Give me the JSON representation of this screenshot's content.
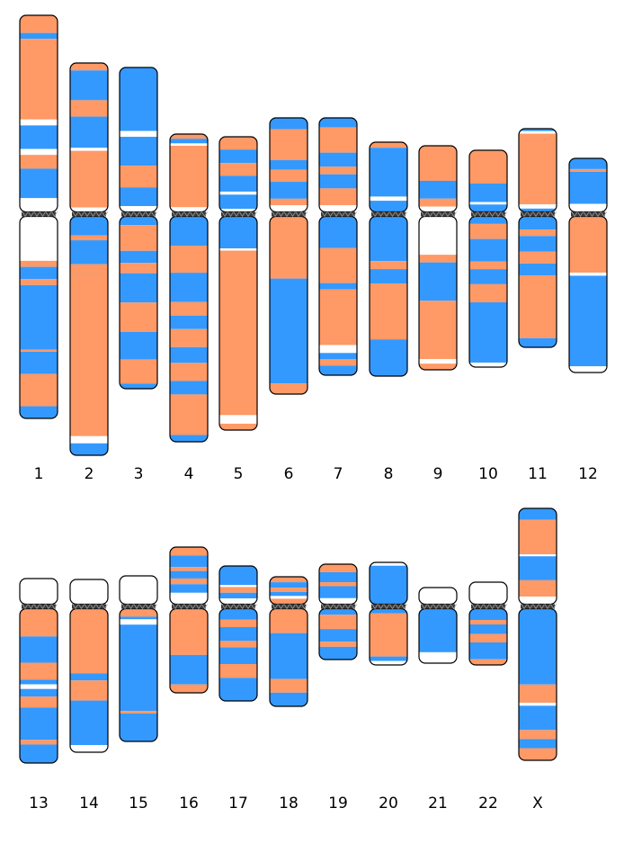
{
  "colors": {
    "a": "#ff9966",
    "b": "#3399ff",
    "empty": "#ffffff",
    "centromere": "#3a3a3a",
    "outline": "#000000"
  },
  "chromosomes": [
    {
      "label": "1",
      "p": [
        [
          "a",
          0,
          0.09
        ],
        [
          "b",
          0.09,
          0.12
        ],
        [
          "a",
          0.12,
          0.53
        ],
        [
          "empty",
          0.53,
          0.56
        ],
        [
          "b",
          0.56,
          0.68
        ],
        [
          "empty",
          0.68,
          0.71
        ],
        [
          "a",
          0.71,
          0.78
        ],
        [
          "b",
          0.78,
          0.93
        ],
        [
          "empty",
          0.93,
          1
        ]
      ],
      "q": [
        [
          "empty",
          0,
          0.22
        ],
        [
          "a",
          0.22,
          0.25
        ],
        [
          "b",
          0.25,
          0.31
        ],
        [
          "a",
          0.31,
          0.34
        ],
        [
          "b",
          0.34,
          0.66
        ],
        [
          "a",
          0.66,
          0.67
        ],
        [
          "b",
          0.67,
          0.78
        ],
        [
          "a",
          0.78,
          0.94
        ],
        [
          "b",
          0.94,
          1
        ]
      ]
    },
    {
      "label": "2",
      "p": [
        [
          "a",
          0,
          0.05
        ],
        [
          "b",
          0.05,
          0.25
        ],
        [
          "a",
          0.25,
          0.36
        ],
        [
          "b",
          0.36,
          0.57
        ],
        [
          "empty",
          0.57,
          0.59
        ],
        [
          "a",
          0.59,
          0.97
        ],
        [
          "empty",
          0.97,
          1
        ]
      ],
      "q": [
        [
          "b",
          0,
          0.08
        ],
        [
          "a",
          0.08,
          0.1
        ],
        [
          "b",
          0.1,
          0.2
        ],
        [
          "a",
          0.2,
          0.24
        ],
        [
          "b",
          0.24,
          0.24
        ],
        [
          "a",
          0.24,
          0.92
        ],
        [
          "empty",
          0.92,
          0.95
        ],
        [
          "b",
          0.95,
          1
        ]
      ]
    },
    {
      "label": "3",
      "p": [
        [
          "b",
          0,
          0.44
        ],
        [
          "empty",
          0.44,
          0.48
        ],
        [
          "b",
          0.48,
          0.68
        ],
        [
          "a",
          0.68,
          0.83
        ],
        [
          "b",
          0.83,
          0.96
        ],
        [
          "empty",
          0.96,
          1
        ]
      ],
      "q": [
        [
          "b",
          0,
          0.05
        ],
        [
          "a",
          0.05,
          0.2
        ],
        [
          "b",
          0.2,
          0.27
        ],
        [
          "a",
          0.27,
          0.33
        ],
        [
          "b",
          0.33,
          0.5
        ],
        [
          "a",
          0.5,
          0.67
        ],
        [
          "b",
          0.67,
          0.83
        ],
        [
          "a",
          0.83,
          0.97
        ],
        [
          "b",
          0.97,
          1
        ]
      ]
    },
    {
      "label": "4",
      "p": [
        [
          "a",
          0,
          0.06
        ],
        [
          "b",
          0.06,
          0.12
        ],
        [
          "empty",
          0.12,
          0.15
        ],
        [
          "a",
          0.15,
          0.94
        ],
        [
          "empty",
          0.94,
          1
        ]
      ],
      "q": [
        [
          "b",
          0,
          0.13
        ],
        [
          "a",
          0.13,
          0.25
        ],
        [
          "b",
          0.25,
          0.38
        ],
        [
          "a",
          0.38,
          0.44
        ],
        [
          "b",
          0.44,
          0.5
        ],
        [
          "a",
          0.5,
          0.58
        ],
        [
          "b",
          0.58,
          0.65
        ],
        [
          "a",
          0.65,
          0.73
        ],
        [
          "b",
          0.73,
          0.79
        ],
        [
          "a",
          0.79,
          0.97
        ],
        [
          "b",
          0.97,
          1
        ]
      ]
    },
    {
      "label": "5",
      "p": [
        [
          "a",
          0,
          0.17
        ],
        [
          "b",
          0.17,
          0.35
        ],
        [
          "a",
          0.35,
          0.52
        ],
        [
          "b",
          0.52,
          0.73
        ],
        [
          "empty",
          0.73,
          0.77
        ],
        [
          "b",
          0.77,
          0.96
        ],
        [
          "empty",
          0.96,
          1
        ]
      ],
      "q": [
        [
          "b",
          0,
          0.15
        ],
        [
          "empty",
          0.15,
          0.16
        ],
        [
          "a",
          0.16,
          0.93
        ],
        [
          "empty",
          0.93,
          0.97
        ],
        [
          "a",
          0.97,
          1
        ]
      ]
    },
    {
      "label": "6",
      "p": [
        [
          "b",
          0,
          0.12
        ],
        [
          "a",
          0.12,
          0.45
        ],
        [
          "b",
          0.45,
          0.55
        ],
        [
          "a",
          0.55,
          0.68
        ],
        [
          "b",
          0.68,
          0.86
        ],
        [
          "a",
          0.86,
          0.93
        ],
        [
          "empty",
          0.93,
          1
        ]
      ],
      "q": [
        [
          "a",
          0,
          0.35
        ],
        [
          "b",
          0.35,
          0.94
        ],
        [
          "a",
          0.94,
          1
        ]
      ]
    },
    {
      "label": "7",
      "p": [
        [
          "b",
          0,
          0.1
        ],
        [
          "a",
          0.1,
          0.37
        ],
        [
          "b",
          0.37,
          0.52
        ],
        [
          "a",
          0.52,
          0.6
        ],
        [
          "b",
          0.6,
          0.75
        ],
        [
          "a",
          0.75,
          0.93
        ],
        [
          "empty",
          0.93,
          1
        ]
      ],
      "q": [
        [
          "b",
          0,
          0.2
        ],
        [
          "a",
          0.2,
          0.42
        ],
        [
          "b",
          0.42,
          0.46
        ],
        [
          "a",
          0.46,
          0.81
        ],
        [
          "empty",
          0.81,
          0.86
        ],
        [
          "b",
          0.86,
          0.9
        ],
        [
          "a",
          0.9,
          0.94
        ],
        [
          "b",
          0.94,
          1
        ]
      ]
    },
    {
      "label": "8",
      "p": [
        [
          "a",
          0,
          0.08
        ],
        [
          "b",
          0.08,
          0.78
        ],
        [
          "empty",
          0.78,
          0.84
        ],
        [
          "b",
          0.84,
          1
        ]
      ],
      "q": [
        [
          "b",
          0,
          0.28
        ],
        [
          "a",
          0.28,
          0.33
        ],
        [
          "b",
          0.33,
          0.42
        ],
        [
          "a",
          0.42,
          0.77
        ],
        [
          "b",
          0.77,
          1
        ]
      ]
    },
    {
      "label": "9",
      "p": [
        [
          "a",
          0,
          0.53
        ],
        [
          "b",
          0.53,
          0.8
        ],
        [
          "a",
          0.8,
          0.92
        ],
        [
          "empty",
          0.92,
          1
        ]
      ],
      "q": [
        [
          "empty",
          0,
          0.25
        ],
        [
          "a",
          0.25,
          0.3
        ],
        [
          "b",
          0.3,
          0.55
        ],
        [
          "a",
          0.55,
          0.93
        ],
        [
          "empty",
          0.93,
          0.96
        ],
        [
          "a",
          0.96,
          1
        ]
      ]
    },
    {
      "label": "10",
      "p": [
        [
          "a",
          0,
          0.54
        ],
        [
          "b",
          0.54,
          0.84
        ],
        [
          "empty",
          0.84,
          0.88
        ],
        [
          "b",
          0.88,
          1
        ]
      ],
      "q": [
        [
          "b",
          0,
          0.05
        ],
        [
          "a",
          0.05,
          0.15
        ],
        [
          "b",
          0.15,
          0.3
        ],
        [
          "a",
          0.3,
          0.35
        ],
        [
          "b",
          0.35,
          0.45
        ],
        [
          "a",
          0.45,
          0.57
        ],
        [
          "b",
          0.57,
          0.97
        ],
        [
          "empty",
          0.97,
          1
        ]
      ]
    },
    {
      "label": "11",
      "p": [
        [
          "b",
          0,
          0.03
        ],
        [
          "empty",
          0.03,
          0.06
        ],
        [
          "a",
          0.06,
          0.91
        ],
        [
          "empty",
          0.91,
          0.96
        ],
        [
          "b",
          0.96,
          1
        ]
      ],
      "q": [
        [
          "b",
          0,
          0.1
        ],
        [
          "a",
          0.1,
          0.15
        ],
        [
          "b",
          0.15,
          0.27
        ],
        [
          "a",
          0.27,
          0.36
        ],
        [
          "b",
          0.36,
          0.45
        ],
        [
          "a",
          0.45,
          0.93
        ],
        [
          "b",
          0.93,
          1
        ]
      ]
    },
    {
      "label": "12",
      "p": [
        [
          "b",
          0,
          0.2
        ],
        [
          "a",
          0.2,
          0.25
        ],
        [
          "b",
          0.25,
          0.85
        ],
        [
          "empty",
          0.85,
          1
        ]
      ],
      "q": [
        [
          "a",
          0,
          0.36
        ],
        [
          "empty",
          0.36,
          0.38
        ],
        [
          "b",
          0.38,
          0.96
        ],
        [
          "empty",
          0.96,
          1
        ]
      ]
    },
    {
      "label": "13",
      "p": [
        [
          "empty",
          0,
          1
        ]
      ],
      "q": [
        [
          "a",
          0,
          0.18
        ],
        [
          "b",
          0.18,
          0.35
        ],
        [
          "a",
          0.35,
          0.46
        ],
        [
          "b",
          0.46,
          0.49
        ],
        [
          "empty",
          0.49,
          0.52
        ],
        [
          "b",
          0.52,
          0.57
        ],
        [
          "a",
          0.57,
          0.64
        ],
        [
          "b",
          0.64,
          0.85
        ],
        [
          "a",
          0.85,
          0.88
        ],
        [
          "b",
          0.88,
          1
        ]
      ]
    },
    {
      "label": "14",
      "p": [
        [
          "empty",
          0,
          1
        ]
      ],
      "q": [
        [
          "a",
          0,
          0.45
        ],
        [
          "b",
          0.45,
          0.5
        ],
        [
          "a",
          0.5,
          0.64
        ],
        [
          "b",
          0.64,
          0.95
        ],
        [
          "empty",
          0.95,
          1
        ]
      ]
    },
    {
      "label": "15",
      "p": [
        [
          "empty",
          0,
          1
        ]
      ],
      "q": [
        [
          "a",
          0,
          0.06
        ],
        [
          "b",
          0.06,
          0.08
        ],
        [
          "empty",
          0.08,
          0.12
        ],
        [
          "b",
          0.12,
          0.77
        ],
        [
          "a",
          0.77,
          0.79
        ],
        [
          "b",
          0.79,
          1
        ]
      ]
    },
    {
      "label": "16",
      "p": [
        [
          "a",
          0,
          0.15
        ],
        [
          "b",
          0.15,
          0.35
        ],
        [
          "a",
          0.35,
          0.42
        ],
        [
          "b",
          0.42,
          0.55
        ],
        [
          "a",
          0.55,
          0.65
        ],
        [
          "b",
          0.65,
          0.8
        ],
        [
          "empty",
          0.8,
          1
        ]
      ],
      "q": [
        [
          "empty",
          0,
          0.12
        ],
        [
          "a",
          0,
          0.55
        ],
        [
          "b",
          0.55,
          0.9
        ],
        [
          "a",
          0.9,
          1
        ]
      ]
    },
    {
      "label": "17",
      "p": [
        [
          "b",
          0,
          0.5
        ],
        [
          "empty",
          0.5,
          0.55
        ],
        [
          "a",
          0.55,
          0.7
        ],
        [
          "b",
          0.7,
          0.85
        ],
        [
          "empty",
          0.85,
          1
        ]
      ],
      "q": [
        [
          "b",
          0,
          0.12
        ],
        [
          "a",
          0.12,
          0.2
        ],
        [
          "b",
          0.2,
          0.35
        ],
        [
          "a",
          0.35,
          0.42
        ],
        [
          "b",
          0.42,
          0.6
        ],
        [
          "a",
          0.6,
          0.75
        ],
        [
          "b",
          0.75,
          1
        ]
      ]
    },
    {
      "label": "18",
      "p": [
        [
          "a",
          0,
          0.2
        ],
        [
          "b",
          0.2,
          0.4
        ],
        [
          "a",
          0.4,
          0.55
        ],
        [
          "b",
          0.55,
          0.7
        ],
        [
          "empty",
          0.7,
          0.8
        ],
        [
          "a",
          0.8,
          1
        ]
      ],
      "q": [
        [
          "a",
          0,
          0.25
        ],
        [
          "b",
          0.25,
          0.72
        ],
        [
          "a",
          0.72,
          0.86
        ],
        [
          "b",
          0.86,
          1
        ]
      ]
    },
    {
      "label": "19",
      "p": [
        [
          "a",
          0,
          0.2
        ],
        [
          "b",
          0.2,
          0.45
        ],
        [
          "a",
          0.45,
          0.55
        ],
        [
          "b",
          0.55,
          0.85
        ],
        [
          "empty",
          0.85,
          1
        ]
      ],
      "q": [
        [
          "b",
          0,
          0.12
        ],
        [
          "a",
          0.12,
          0.4
        ],
        [
          "b",
          0.4,
          0.65
        ],
        [
          "a",
          0.65,
          0.75
        ],
        [
          "b",
          0.75,
          1
        ]
      ]
    },
    {
      "label": "20",
      "p": [
        [
          "empty",
          0,
          0.08
        ],
        [
          "b",
          0.08,
          1
        ]
      ],
      "q": [
        [
          "b",
          0,
          0.08
        ],
        [
          "a",
          0.08,
          0.85
        ],
        [
          "b",
          0.85,
          0.93
        ],
        [
          "empty",
          0.93,
          1
        ]
      ]
    },
    {
      "label": "21",
      "p": [
        [
          "empty",
          0,
          1
        ]
      ],
      "q": [
        [
          "b",
          0,
          0.8
        ],
        [
          "empty",
          0.8,
          1
        ]
      ]
    },
    {
      "label": "22",
      "p": [
        [
          "empty",
          0,
          1
        ]
      ],
      "q": [
        [
          "b",
          0,
          0.2
        ],
        [
          "a",
          0.2,
          0.28
        ],
        [
          "b",
          0.28,
          0.45
        ],
        [
          "a",
          0.45,
          0.6
        ],
        [
          "b",
          0.6,
          0.9
        ],
        [
          "a",
          0.9,
          1
        ]
      ]
    },
    {
      "label": "X",
      "p": [
        [
          "b",
          0,
          0.12
        ],
        [
          "a",
          0.12,
          0.48
        ],
        [
          "empty",
          0.48,
          0.5
        ],
        [
          "b",
          0.5,
          0.75
        ],
        [
          "a",
          0.75,
          0.92
        ],
        [
          "empty",
          0.92,
          1
        ]
      ],
      "q": [
        [
          "b",
          0,
          0.5
        ],
        [
          "a",
          0.5,
          0.62
        ],
        [
          "empty",
          0.62,
          0.64
        ],
        [
          "b",
          0.64,
          0.8
        ],
        [
          "a",
          0.8,
          0.86
        ],
        [
          "b",
          0.86,
          0.92
        ],
        [
          "a",
          0.92,
          1
        ]
      ]
    }
  ]
}
